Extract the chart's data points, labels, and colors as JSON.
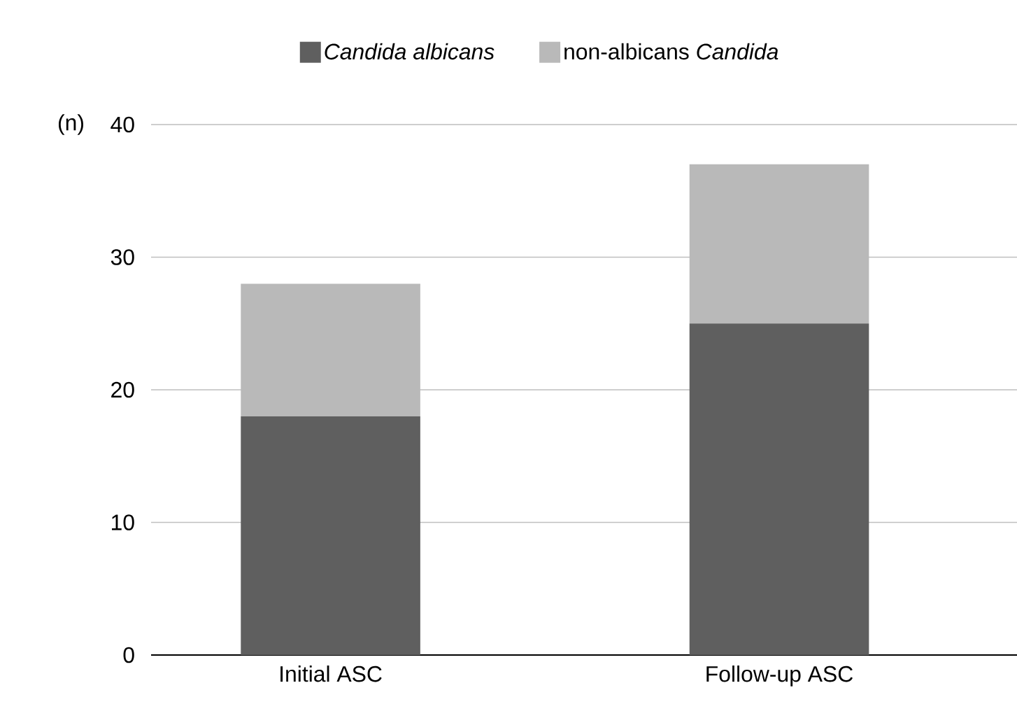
{
  "chart_data": {
    "type": "bar",
    "stacked": true,
    "ylabel": "(n)",
    "categories": [
      "Initial ASC",
      "Follow-up ASC"
    ],
    "series": [
      {
        "name": "*Candida albicans*",
        "color": "#5f5f5f",
        "values": [
          18,
          25
        ]
      },
      {
        "name": "non-albicans *Candida*",
        "color": "#b9b9b9",
        "values": [
          10,
          12
        ]
      }
    ],
    "ylim": [
      0,
      40
    ],
    "yticks": [
      0,
      10,
      20,
      30,
      40
    ],
    "grid": "y",
    "legend": "top"
  }
}
